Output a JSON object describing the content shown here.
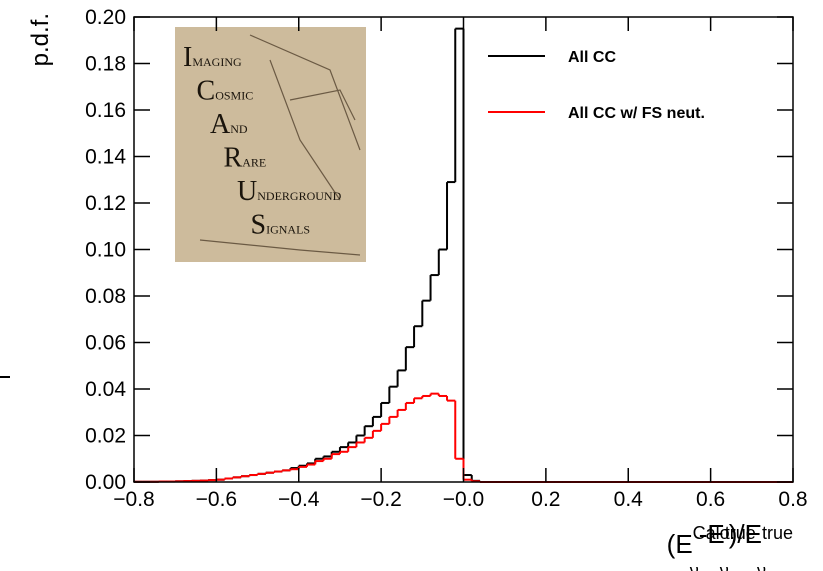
{
  "chart_data": {
    "type": "histogram",
    "ylabel": "p.d.f.",
    "xlabel_parts": [
      "(E",
      "Calo.",
      "ν",
      "-E",
      "true",
      "ν",
      ")/E",
      "true",
      "ν"
    ],
    "bins": [
      -0.8,
      -0.78,
      -0.76,
      -0.74,
      -0.72,
      -0.7,
      -0.68,
      -0.66,
      -0.64,
      -0.62,
      -0.6,
      -0.58,
      -0.56,
      -0.54,
      -0.52,
      -0.5,
      -0.48,
      -0.46,
      -0.44,
      -0.42,
      -0.4,
      -0.38,
      -0.36,
      -0.34,
      -0.32,
      -0.3,
      -0.28,
      -0.26,
      -0.24,
      -0.22,
      -0.2,
      -0.18,
      -0.16,
      -0.14,
      -0.12,
      -0.1,
      -0.08,
      -0.06,
      -0.04,
      -0.02,
      0,
      0.02,
      0.04,
      0.06,
      0.08,
      0.1,
      0.12,
      0.14,
      0.16,
      0.18,
      0.2,
      0.22,
      0.24,
      0.26,
      0.28,
      0.3,
      0.32,
      0.34,
      0.36,
      0.38,
      0.4,
      0.42,
      0.44,
      0.46,
      0.48,
      0.5,
      0.52,
      0.54,
      0.56,
      0.58,
      0.6,
      0.62,
      0.64,
      0.66,
      0.68,
      0.7,
      0.72,
      0.74,
      0.76,
      0.78,
      0.8
    ],
    "series": [
      {
        "name": "All CC",
        "color": "#000000",
        "values": [
          0.0001,
          0.0001,
          0.0001,
          0.0002,
          0.0002,
          0.0003,
          0.0004,
          0.0005,
          0.0006,
          0.0008,
          0.001,
          0.0015,
          0.002,
          0.0025,
          0.003,
          0.0035,
          0.004,
          0.0045,
          0.005,
          0.006,
          0.007,
          0.008,
          0.01,
          0.011,
          0.013,
          0.015,
          0.017,
          0.02,
          0.024,
          0.028,
          0.034,
          0.041,
          0.048,
          0.058,
          0.067,
          0.078,
          0.089,
          0.1,
          0.129,
          0.195,
          0.003,
          0.0005,
          0,
          0,
          0,
          0,
          0,
          0,
          0,
          0,
          0,
          0,
          0,
          0,
          0,
          0,
          0,
          0,
          0,
          0,
          0,
          0,
          0,
          0,
          0,
          0,
          0,
          0,
          0,
          0,
          0,
          0,
          0,
          0,
          0,
          0,
          0,
          0,
          0,
          0
        ]
      },
      {
        "name": "All CC w/ FS neut.",
        "color": "#ff0000",
        "values": [
          0.0001,
          0.0001,
          0.0001,
          0.0002,
          0.0002,
          0.0003,
          0.0004,
          0.0005,
          0.0006,
          0.0008,
          0.001,
          0.0015,
          0.002,
          0.0025,
          0.003,
          0.0035,
          0.004,
          0.0045,
          0.005,
          0.0055,
          0.0065,
          0.0075,
          0.009,
          0.01,
          0.012,
          0.013,
          0.015,
          0.017,
          0.019,
          0.022,
          0.025,
          0.028,
          0.031,
          0.034,
          0.036,
          0.037,
          0.038,
          0.037,
          0.035,
          0.01,
          0.001,
          0.0003,
          0,
          0,
          0,
          0,
          0,
          0,
          0,
          0,
          0,
          0,
          0,
          0,
          0,
          0,
          0,
          0,
          0,
          0,
          0,
          0,
          0,
          0,
          0,
          0,
          0,
          0,
          0,
          0,
          0,
          0,
          0,
          0,
          0,
          0,
          0,
          0,
          0,
          0
        ]
      }
    ],
    "xlim": [
      -0.8,
      0.8
    ],
    "ylim": [
      0,
      0.2
    ],
    "xticks": [
      {
        "value": -0.8,
        "label": "−0.8"
      },
      {
        "value": -0.6,
        "label": "−0.6"
      },
      {
        "value": -0.4,
        "label": "−0.4"
      },
      {
        "value": -0.2,
        "label": "−0.2"
      },
      {
        "value": 0,
        "label": "−0.0"
      },
      0.2,
      0.4,
      0.6,
      0.8
    ],
    "yticks": [
      {
        "value": 0,
        "label": "0.00"
      },
      {
        "value": 0.02,
        "label": "0.02"
      },
      {
        "value": 0.04,
        "label": "0.04"
      },
      {
        "value": 0.06,
        "label": "0.06"
      },
      {
        "value": 0.08,
        "label": "0.08"
      },
      {
        "value": 0.1,
        "label": "0.10"
      },
      {
        "value": 0.12,
        "label": "0.12"
      },
      {
        "value": 0.14,
        "label": "0.14"
      },
      {
        "value": 0.16,
        "label": "0.16"
      },
      {
        "value": 0.18,
        "label": "0.18"
      },
      {
        "value": 0.2,
        "label": "0.20"
      }
    ],
    "logo": [
      {
        "initial": "I",
        "rest": "MAGING"
      },
      {
        "initial": "C",
        "rest": "OSMIC"
      },
      {
        "initial": "A",
        "rest": "ND"
      },
      {
        "initial": "R",
        "rest": "ARE"
      },
      {
        "initial": "U",
        "rest": "NDERGROUND"
      },
      {
        "initial": "S",
        "rest": "IGNALS"
      }
    ]
  }
}
